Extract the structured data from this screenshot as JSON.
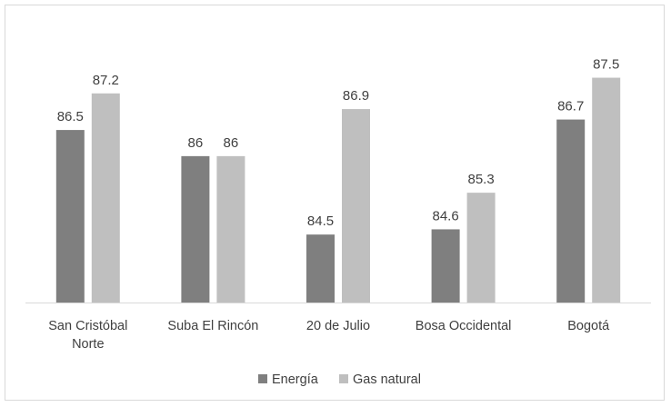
{
  "chart_data": {
    "type": "bar",
    "categories": [
      [
        "San Cristóbal",
        "Norte"
      ],
      [
        "Suba El Rincón"
      ],
      [
        "20 de Julio"
      ],
      [
        "Bosa Occidental"
      ],
      [
        "Bogotá"
      ]
    ],
    "series": [
      {
        "name": "Energía",
        "color": "#7f7f7f",
        "values": [
          86.5,
          86,
          84.5,
          84.6,
          86.7
        ]
      },
      {
        "name": "Gas natural",
        "color": "#bfbfbf",
        "values": [
          87.2,
          86,
          86.9,
          85.3,
          87.5
        ]
      }
    ],
    "value_labels": [
      [
        "86.5",
        "86",
        "84.5",
        "84.6",
        "86.7"
      ],
      [
        "87.2",
        "86",
        "86.9",
        "85.3",
        "87.5"
      ]
    ],
    "ylim": [
      83.2,
      88.0
    ],
    "grid": false,
    "legend": "bottom-center"
  }
}
